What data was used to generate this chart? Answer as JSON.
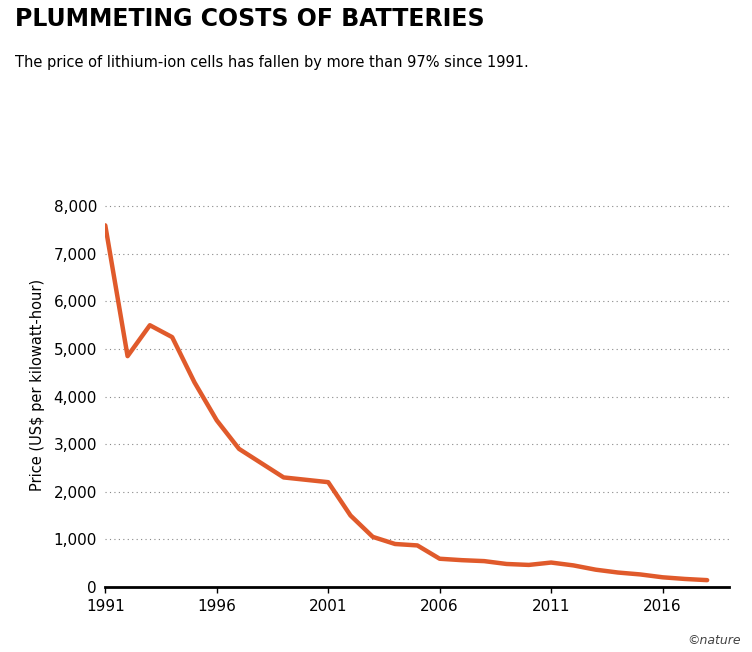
{
  "title": "PLUMMETING COSTS OF BATTERIES",
  "subtitle": "The price of lithium-ion cells has fallen by more than 97% since 1991.",
  "ylabel": "Price (US$ per kilowatt-hour)",
  "line_color": "#E05A2B",
  "line_width": 3.2,
  "background_color": "#ffffff",
  "xlim": [
    1991,
    2019
  ],
  "ylim": [
    0,
    8500
  ],
  "yticks": [
    0,
    1000,
    2000,
    3000,
    4000,
    5000,
    6000,
    7000,
    8000
  ],
  "xticks": [
    1991,
    1996,
    2001,
    2006,
    2011,
    2016
  ],
  "years": [
    1991,
    1992,
    1993,
    1994,
    1995,
    1996,
    1997,
    1998,
    1999,
    2000,
    2001,
    2002,
    2003,
    2004,
    2005,
    2006,
    2007,
    2008,
    2009,
    2010,
    2011,
    2012,
    2013,
    2014,
    2015,
    2016,
    2017,
    2018
  ],
  "prices": [
    7600,
    4850,
    5500,
    5250,
    4300,
    3500,
    2900,
    2600,
    2300,
    2250,
    2200,
    1500,
    1050,
    900,
    870,
    590,
    560,
    540,
    480,
    460,
    510,
    450,
    360,
    300,
    260,
    200,
    165,
    140
  ]
}
